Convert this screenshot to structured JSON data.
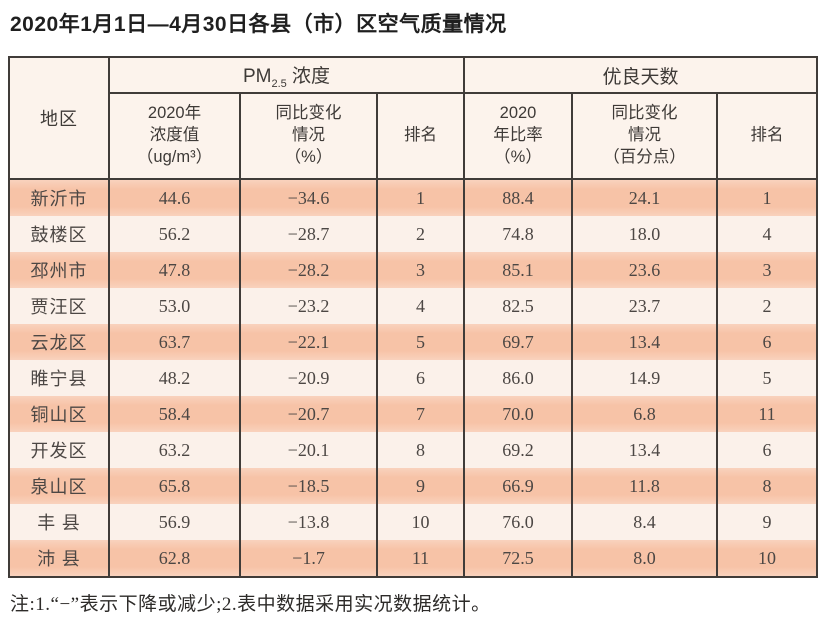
{
  "title": "2020年1月1日—4月30日各县（市）区空气质量情况",
  "footnote": "注:1.“−”表示下降或减少;2.表中数据采用实况数据统计。",
  "colors": {
    "row_odd": "#f7c3a7",
    "row_even": "#fbf1ea",
    "header_bg": "#fcf3ec",
    "border": "#403c39",
    "text": "#4c4744"
  },
  "table": {
    "header": {
      "region": "地区",
      "pm_group": {
        "prefix": "PM",
        "sub": "2.5",
        "suffix": " 浓度"
      },
      "days_group": "优良天数",
      "pm_value": "2020年\n浓度值\n（ug/m³）",
      "pm_change": "同比变化\n情况\n（%）",
      "pm_rank": "排名",
      "days_ratio": "2020\n年比率\n（%）",
      "days_change": "同比变化\n情况\n（百分点）",
      "days_rank": "排名"
    },
    "rows": [
      {
        "region": "新沂市",
        "pm_value": "44.6",
        "pm_change": "−34.6",
        "pm_rank": "1",
        "days_ratio": "88.4",
        "days_change": "24.1",
        "days_rank": "1"
      },
      {
        "region": "鼓楼区",
        "pm_value": "56.2",
        "pm_change": "−28.7",
        "pm_rank": "2",
        "days_ratio": "74.8",
        "days_change": "18.0",
        "days_rank": "4"
      },
      {
        "region": "邳州市",
        "pm_value": "47.8",
        "pm_change": "−28.2",
        "pm_rank": "3",
        "days_ratio": "85.1",
        "days_change": "23.6",
        "days_rank": "3"
      },
      {
        "region": "贾汪区",
        "pm_value": "53.0",
        "pm_change": "−23.2",
        "pm_rank": "4",
        "days_ratio": "82.5",
        "days_change": "23.7",
        "days_rank": "2"
      },
      {
        "region": "云龙区",
        "pm_value": "63.7",
        "pm_change": "−22.1",
        "pm_rank": "5",
        "days_ratio": "69.7",
        "days_change": "13.4",
        "days_rank": "6"
      },
      {
        "region": "睢宁县",
        "pm_value": "48.2",
        "pm_change": "−20.9",
        "pm_rank": "6",
        "days_ratio": "86.0",
        "days_change": "14.9",
        "days_rank": "5"
      },
      {
        "region": "铜山区",
        "pm_value": "58.4",
        "pm_change": "−20.7",
        "pm_rank": "7",
        "days_ratio": "70.0",
        "days_change": "6.8",
        "days_rank": "11"
      },
      {
        "region": "开发区",
        "pm_value": "63.2",
        "pm_change": "−20.1",
        "pm_rank": "8",
        "days_ratio": "69.2",
        "days_change": "13.4",
        "days_rank": "6"
      },
      {
        "region": "泉山区",
        "pm_value": "65.8",
        "pm_change": "−18.5",
        "pm_rank": "9",
        "days_ratio": "66.9",
        "days_change": "11.8",
        "days_rank": "8"
      },
      {
        "region": "丰 县",
        "pm_value": "56.9",
        "pm_change": "−13.8",
        "pm_rank": "10",
        "days_ratio": "76.0",
        "days_change": "8.4",
        "days_rank": "9"
      },
      {
        "region": "沛 县",
        "pm_value": "62.8",
        "pm_change": "−1.7",
        "pm_rank": "11",
        "days_ratio": "72.5",
        "days_change": "8.0",
        "days_rank": "10"
      }
    ]
  }
}
